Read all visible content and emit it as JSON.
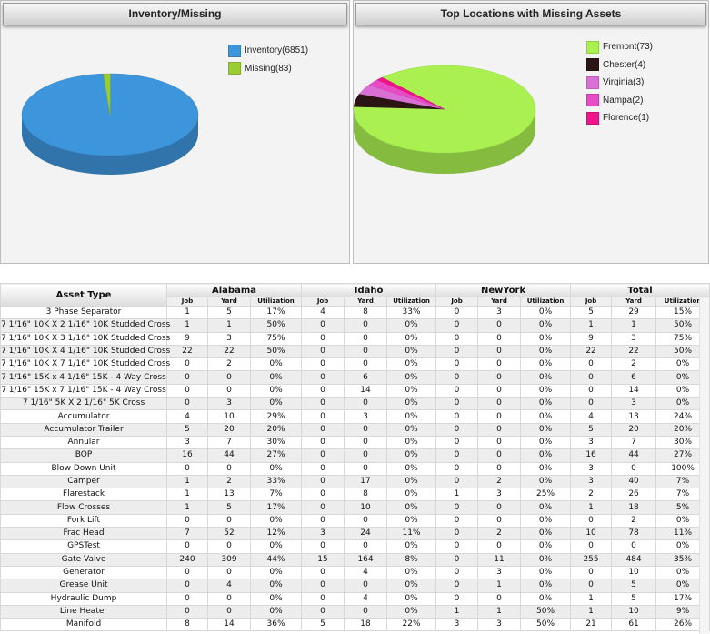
{
  "inventory_chart": {
    "title": "Inventory/Missing",
    "chart_data": {
      "type": "pie",
      "title": "Inventory/Missing",
      "labels": [
        "Inventory(6851)",
        "Missing(83)"
      ],
      "values": [
        6851,
        83
      ],
      "colors": [
        "#3d95db",
        "#9acd32"
      ],
      "legend_placement": "right"
    }
  },
  "locations_chart": {
    "title": "Top Locations with Missing Assets",
    "chart_data": {
      "type": "pie",
      "title": "Top Locations with Missing Assets",
      "labels": [
        "Fremont(73)",
        "Chester(4)",
        "Virginia(3)",
        "Nampa(2)",
        "Florence(1)"
      ],
      "values": [
        73,
        4,
        3,
        2,
        1
      ],
      "colors": [
        "#aaf050",
        "#2b1414",
        "#da70d6",
        "#e84bc6",
        "#f0148a"
      ],
      "legend_placement": "right"
    }
  },
  "grid": {
    "asset_type_header": "Asset Type",
    "groups": [
      "Alabama",
      "Idaho",
      "NewYork",
      "Total"
    ],
    "sub_headers": [
      "Job",
      "Yard",
      "Utilization"
    ],
    "rows": [
      {
        "name": "3 Phase Separator",
        "v": [
          "1",
          "5",
          "17%",
          "4",
          "8",
          "33%",
          "0",
          "3",
          "0%",
          "5",
          "29",
          "15%"
        ]
      },
      {
        "name": "7 1/16\" 10K X 2 1/16\" 10K Studded Cross",
        "v": [
          "1",
          "1",
          "50%",
          "0",
          "0",
          "0%",
          "0",
          "0",
          "0%",
          "1",
          "1",
          "50%"
        ]
      },
      {
        "name": "7 1/16\" 10K X 3 1/16\" 10K Studded Cross",
        "v": [
          "9",
          "3",
          "75%",
          "0",
          "0",
          "0%",
          "0",
          "0",
          "0%",
          "9",
          "3",
          "75%"
        ]
      },
      {
        "name": "7 1/16\" 10K X 4 1/16\" 10K Studded Cross",
        "v": [
          "22",
          "22",
          "50%",
          "0",
          "0",
          "0%",
          "0",
          "0",
          "0%",
          "22",
          "22",
          "50%"
        ]
      },
      {
        "name": "7 1/16\" 10K X 7 1/16\" 10K Studded Cross",
        "v": [
          "0",
          "2",
          "0%",
          "0",
          "0",
          "0%",
          "0",
          "0",
          "0%",
          "0",
          "2",
          "0%"
        ]
      },
      {
        "name": "7 1/16\" 15K x 4 1/16\" 15K - 4 Way Cross",
        "v": [
          "0",
          "0",
          "0%",
          "0",
          "6",
          "0%",
          "0",
          "0",
          "0%",
          "0",
          "6",
          "0%"
        ]
      },
      {
        "name": "7 1/16\" 15K x 7 1/16\" 15K - 4 Way Cross",
        "v": [
          "0",
          "0",
          "0%",
          "0",
          "14",
          "0%",
          "0",
          "0",
          "0%",
          "0",
          "14",
          "0%"
        ]
      },
      {
        "name": "7 1/16\" 5K X 2 1/16\" 5K Cross",
        "v": [
          "0",
          "3",
          "0%",
          "0",
          "0",
          "0%",
          "0",
          "0",
          "0%",
          "0",
          "3",
          "0%"
        ]
      },
      {
        "name": "Accumulator",
        "v": [
          "4",
          "10",
          "29%",
          "0",
          "3",
          "0%",
          "0",
          "0",
          "0%",
          "4",
          "13",
          "24%"
        ]
      },
      {
        "name": "Accumulator Trailer",
        "v": [
          "5",
          "20",
          "20%",
          "0",
          "0",
          "0%",
          "0",
          "0",
          "0%",
          "5",
          "20",
          "20%"
        ]
      },
      {
        "name": "Annular",
        "v": [
          "3",
          "7",
          "30%",
          "0",
          "0",
          "0%",
          "0",
          "0",
          "0%",
          "3",
          "7",
          "30%"
        ]
      },
      {
        "name": "BOP",
        "v": [
          "16",
          "44",
          "27%",
          "0",
          "0",
          "0%",
          "0",
          "0",
          "0%",
          "16",
          "44",
          "27%"
        ]
      },
      {
        "name": "Blow Down Unit",
        "v": [
          "0",
          "0",
          "0%",
          "0",
          "0",
          "0%",
          "0",
          "0",
          "0%",
          "3",
          "0",
          "100%"
        ]
      },
      {
        "name": "Camper",
        "v": [
          "1",
          "2",
          "33%",
          "0",
          "17",
          "0%",
          "0",
          "2",
          "0%",
          "3",
          "40",
          "7%"
        ]
      },
      {
        "name": "Flarestack",
        "v": [
          "1",
          "13",
          "7%",
          "0",
          "8",
          "0%",
          "1",
          "3",
          "25%",
          "2",
          "26",
          "7%"
        ]
      },
      {
        "name": "Flow Crosses",
        "v": [
          "1",
          "5",
          "17%",
          "0",
          "10",
          "0%",
          "0",
          "0",
          "0%",
          "1",
          "18",
          "5%"
        ]
      },
      {
        "name": "Fork Lift",
        "v": [
          "0",
          "0",
          "0%",
          "0",
          "0",
          "0%",
          "0",
          "0",
          "0%",
          "0",
          "2",
          "0%"
        ]
      },
      {
        "name": "Frac Head",
        "v": [
          "7",
          "52",
          "12%",
          "3",
          "24",
          "11%",
          "0",
          "2",
          "0%",
          "10",
          "78",
          "11%"
        ]
      },
      {
        "name": "GPSTest",
        "v": [
          "0",
          "0",
          "0%",
          "0",
          "0",
          "0%",
          "0",
          "0",
          "0%",
          "0",
          "0",
          "0%"
        ]
      },
      {
        "name": "Gate Valve",
        "v": [
          "240",
          "309",
          "44%",
          "15",
          "164",
          "8%",
          "0",
          "11",
          "0%",
          "255",
          "484",
          "35%"
        ]
      },
      {
        "name": "Generator",
        "v": [
          "0",
          "0",
          "0%",
          "0",
          "4",
          "0%",
          "0",
          "3",
          "0%",
          "0",
          "10",
          "0%"
        ]
      },
      {
        "name": "Grease Unit",
        "v": [
          "0",
          "4",
          "0%",
          "0",
          "0",
          "0%",
          "0",
          "1",
          "0%",
          "0",
          "5",
          "0%"
        ]
      },
      {
        "name": "Hydraulic Dump",
        "v": [
          "0",
          "0",
          "0%",
          "0",
          "4",
          "0%",
          "0",
          "0",
          "0%",
          "1",
          "5",
          "17%"
        ]
      },
      {
        "name": "Line Heater",
        "v": [
          "0",
          "0",
          "0%",
          "0",
          "0",
          "0%",
          "1",
          "1",
          "50%",
          "1",
          "10",
          "9%"
        ]
      },
      {
        "name": "Manifold",
        "v": [
          "8",
          "14",
          "36%",
          "5",
          "18",
          "22%",
          "3",
          "3",
          "50%",
          "21",
          "61",
          "26%"
        ]
      }
    ]
  }
}
